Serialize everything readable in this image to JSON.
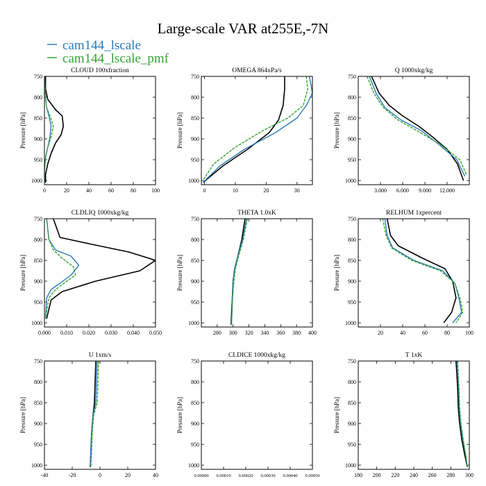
{
  "figure": {
    "title": "Large-scale VAR at255E,-7N",
    "legend": [
      {
        "name": "cam144_lscale",
        "color": "#2a7ab5"
      },
      {
        "name": "cam144_lscale_pmf",
        "color": "#35a235"
      }
    ],
    "ylabel": "Pressure [hPa]"
  },
  "chart_data": [
    {
      "type": "line",
      "title": "CLOUD 100xfraction",
      "xlim": [
        0,
        100
      ],
      "ylim": [
        750,
        1010
      ],
      "xticks": [
        0,
        20,
        40,
        60,
        80,
        100
      ],
      "xtick_labels": [
        "0",
        "20",
        "40",
        "60",
        "80",
        "100"
      ],
      "yticks": [
        750,
        800,
        850,
        900,
        950,
        1000
      ],
      "ylabel": "Pressure [hPa]",
      "series": [
        {
          "color": "#000000",
          "x": [
            1,
            1,
            3,
            10,
            16,
            17,
            15,
            10,
            6,
            3,
            1,
            1
          ],
          "y": [
            750,
            780,
            805,
            830,
            845,
            870,
            890,
            910,
            935,
            960,
            985,
            1005
          ]
        },
        {
          "color": "#2a7ab5",
          "x": [
            0,
            1,
            2,
            4,
            6,
            5,
            3,
            1,
            0,
            0
          ],
          "y": [
            750,
            800,
            825,
            845,
            870,
            895,
            920,
            945,
            975,
            1005
          ]
        },
        {
          "color": "#35a235",
          "x": [
            0,
            1,
            2,
            5,
            8,
            6,
            3,
            1,
            0,
            0
          ],
          "y": [
            750,
            800,
            825,
            845,
            870,
            895,
            920,
            945,
            975,
            1005
          ]
        }
      ]
    },
    {
      "type": "line",
      "title": "OMEGA 864xPa/s",
      "xlim": [
        -1,
        35
      ],
      "ylim": [
        750,
        1010
      ],
      "xticks": [
        0,
        10,
        20,
        30
      ],
      "xtick_labels": [
        "0",
        "10",
        "20",
        "30"
      ],
      "yticks": [
        750,
        800,
        850,
        900,
        950,
        1000
      ],
      "ylabel": "Pressure [hPa]",
      "series": [
        {
          "color": "#000000",
          "x": [
            26,
            26,
            25.5,
            24,
            21,
            14,
            6,
            -0.5
          ],
          "y": [
            750,
            780,
            820,
            855,
            885,
            925,
            965,
            1005
          ]
        },
        {
          "color": "#2a7ab5",
          "x": [
            34,
            35,
            33,
            30,
            23,
            13,
            5,
            -0.5
          ],
          "y": [
            750,
            790,
            820,
            850,
            885,
            925,
            965,
            1005
          ]
        },
        {
          "color": "#35a235",
          "x": [
            33,
            33.5,
            32,
            27,
            19,
            10,
            3,
            -0.5
          ],
          "y": [
            750,
            780,
            820,
            850,
            880,
            920,
            960,
            1000
          ]
        }
      ]
    },
    {
      "type": "line",
      "title": "Q 1000xkg/kg",
      "xlim": [
        0,
        15
      ],
      "ylim": [
        750,
        1010
      ],
      "xticks": [
        3,
        6,
        9,
        12
      ],
      "xtick_labels": [
        "3.000",
        "6.000",
        "9.000",
        "12.000"
      ],
      "yticks": [
        750,
        800,
        850,
        900,
        950,
        1000
      ],
      "ylabel": "Pressure [hPa]",
      "series": [
        {
          "color": "#000000",
          "x": [
            1.8,
            2.8,
            4.2,
            6,
            8.2,
            10,
            12,
            13.4,
            14.2
          ],
          "y": [
            750,
            790,
            820,
            845,
            870,
            895,
            925,
            960,
            1000
          ]
        },
        {
          "color": "#2a7ab5",
          "x": [
            1.5,
            2.4,
            3.6,
            5.8,
            8.5,
            11,
            13.3,
            14.4
          ],
          "y": [
            750,
            790,
            825,
            855,
            880,
            915,
            950,
            990
          ]
        },
        {
          "color": "#35a235",
          "x": [
            1.2,
            2.1,
            3.4,
            5.4,
            8.4,
            11.2,
            13.7,
            14.6
          ],
          "y": [
            750,
            790,
            825,
            855,
            885,
            915,
            950,
            985
          ]
        }
      ]
    },
    {
      "type": "line",
      "title": "CLDLIQ 1000xkg/kg",
      "xlim": [
        0,
        0.05
      ],
      "ylim": [
        750,
        1010
      ],
      "xticks": [
        0,
        0.01,
        0.02,
        0.03,
        0.04,
        0.05
      ],
      "xtick_labels": [
        "0.000",
        "0.010",
        "0.020",
        "0.030",
        "0.040",
        "0.050"
      ],
      "yticks": [
        750,
        800,
        850,
        900,
        950,
        1000
      ],
      "ylabel": "Pressure [hPa]",
      "series": [
        {
          "color": "#000000",
          "x": [
            0.004,
            0.007,
            0.02,
            0.038,
            0.05,
            0.043,
            0.023,
            0.008,
            0.003,
            0.001
          ],
          "y": [
            750,
            795,
            810,
            830,
            850,
            875,
            900,
            925,
            945,
            990
          ]
        },
        {
          "color": "#2a7ab5",
          "x": [
            0.001,
            0.002,
            0.005,
            0.012,
            0.0155,
            0.012,
            0.007,
            0.003,
            0.001,
            0.0005
          ],
          "y": [
            750,
            800,
            825,
            840,
            862,
            885,
            905,
            920,
            940,
            990
          ]
        },
        {
          "color": "#35a235",
          "x": [
            0.001,
            0.002,
            0.004,
            0.008,
            0.013,
            0.014,
            0.01,
            0.005,
            0.002,
            0.0005
          ],
          "y": [
            750,
            800,
            825,
            845,
            865,
            885,
            900,
            920,
            940,
            990
          ]
        }
      ]
    },
    {
      "type": "line",
      "title": "THETA 1.0xK",
      "xlim": [
        260,
        400
      ],
      "ylim": [
        750,
        1010
      ],
      "xticks": [
        280,
        300,
        320,
        340,
        360,
        380,
        400
      ],
      "xtick_labels": [
        "280",
        "300",
        "320",
        "340",
        "360",
        "380",
        "400"
      ],
      "yticks": [
        750,
        800,
        850,
        900,
        950,
        1000
      ],
      "ylabel": "Pressure [hPa]",
      "series": [
        {
          "color": "#000000",
          "x": [
            315,
            311,
            306,
            302,
            300,
            299,
            298,
            297.5
          ],
          "y": [
            750,
            800,
            840,
            870,
            900,
            940,
            980,
            1005
          ]
        },
        {
          "color": "#2a7ab5",
          "x": [
            317,
            312,
            306,
            302,
            300,
            299,
            298.5,
            298
          ],
          "y": [
            750,
            800,
            840,
            870,
            900,
            940,
            980,
            1005
          ]
        },
        {
          "color": "#35a235",
          "x": [
            318,
            313,
            307,
            303,
            301,
            299.5,
            298.5,
            298
          ],
          "y": [
            750,
            800,
            840,
            870,
            900,
            940,
            980,
            1005
          ]
        }
      ]
    },
    {
      "type": "line",
      "title": "RELHUM 1xpercent",
      "xlim": [
        0,
        100
      ],
      "ylim": [
        750,
        1010
      ],
      "xticks": [
        20,
        40,
        60,
        80,
        100
      ],
      "xtick_labels": [
        "20",
        "40",
        "60",
        "80",
        "100"
      ],
      "yticks": [
        750,
        800,
        850,
        900,
        950,
        1000
      ],
      "ylabel": "Pressure [hPa]",
      "series": [
        {
          "color": "#000000",
          "x": [
            26,
            29,
            36,
            58,
            78,
            85,
            88,
            84,
            77
          ],
          "y": [
            750,
            790,
            815,
            845,
            870,
            900,
            940,
            975,
            1000
          ]
        },
        {
          "color": "#2a7ab5",
          "x": [
            24,
            26,
            31,
            50,
            76,
            87,
            91,
            93,
            85
          ],
          "y": [
            750,
            790,
            820,
            850,
            875,
            905,
            945,
            975,
            1000
          ]
        },
        {
          "color": "#35a235",
          "x": [
            22,
            25,
            30,
            48,
            74,
            87,
            92,
            94,
            88
          ],
          "y": [
            750,
            790,
            820,
            850,
            875,
            905,
            945,
            975,
            1000
          ]
        }
      ]
    },
    {
      "type": "line",
      "title": "U 1xm/s",
      "xlim": [
        -40,
        40
      ],
      "ylim": [
        750,
        1010
      ],
      "xticks": [
        -40,
        -20,
        0,
        20,
        40
      ],
      "xtick_labels": [
        "-40",
        "-20",
        "0",
        "20",
        "40"
      ],
      "yticks": [
        750,
        800,
        850,
        900,
        950,
        1000
      ],
      "ylabel": "Pressure [hPa]",
      "series": [
        {
          "color": "#000000",
          "x": [
            -3,
            -3.5,
            -4,
            -5,
            -6,
            -6.5,
            -7
          ],
          "y": [
            750,
            800,
            850,
            880,
            920,
            960,
            1005
          ]
        },
        {
          "color": "#2a7ab5",
          "x": [
            -2,
            -2.5,
            -3,
            -5,
            -6,
            -6.5,
            -7
          ],
          "y": [
            750,
            800,
            850,
            880,
            920,
            960,
            1005
          ]
        },
        {
          "color": "#35a235",
          "x": [
            -1,
            -1.5,
            -2,
            -4.5,
            -5.5,
            -6,
            -6.5
          ],
          "y": [
            750,
            800,
            850,
            880,
            920,
            960,
            1005
          ]
        }
      ]
    },
    {
      "type": "line",
      "title": "CLDICE 1000xkg/kg",
      "xlim": [
        0,
        0.0005
      ],
      "ylim": [
        750,
        1010
      ],
      "xticks": [
        0,
        0.0001,
        0.0002,
        0.0003,
        0.0004,
        0.0005
      ],
      "xtick_labels": [
        "0.00000",
        "0.00010",
        "0.00020",
        "0.00030",
        "0.00040",
        "0.00050"
      ],
      "yticks": [
        750,
        800,
        850,
        900,
        950,
        1000
      ],
      "ylabel": "Pressure [hPa]",
      "series": []
    },
    {
      "type": "line",
      "title": "T 1xK",
      "xlim": [
        180,
        300
      ],
      "ylim": [
        750,
        1010
      ],
      "xticks": [
        180,
        200,
        220,
        240,
        260,
        280,
        300
      ],
      "xtick_labels": [
        "180",
        "200",
        "220",
        "240",
        "260",
        "280",
        "300"
      ],
      "yticks": [
        750,
        800,
        850,
        900,
        950,
        1000
      ],
      "ylabel": "Pressure [hPa]",
      "series": [
        {
          "color": "#000000",
          "x": [
            285.5,
            286.5,
            287.5,
            288,
            289.5,
            292,
            295,
            298
          ],
          "y": [
            750,
            780,
            820,
            860,
            900,
            940,
            975,
            1005
          ]
        },
        {
          "color": "#2a7ab5",
          "x": [
            286.5,
            287.5,
            288.5,
            289,
            290.5,
            293,
            296,
            298
          ],
          "y": [
            750,
            780,
            820,
            860,
            900,
            940,
            975,
            1005
          ]
        },
        {
          "color": "#35a235",
          "x": [
            287.5,
            288,
            289,
            289.5,
            291,
            293.5,
            296,
            298
          ],
          "y": [
            750,
            780,
            820,
            860,
            900,
            940,
            975,
            1005
          ]
        }
      ]
    }
  ]
}
